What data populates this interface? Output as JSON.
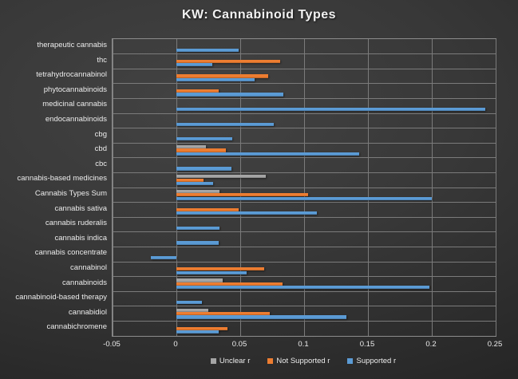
{
  "chart_data": {
    "type": "bar",
    "orientation": "horizontal",
    "title": "KW: Cannabinoid Types",
    "xlim": [
      -0.05,
      0.25
    ],
    "grid": true,
    "legend_position": "bottom",
    "x_ticks": [
      {
        "value": -0.05,
        "label": "-0.05"
      },
      {
        "value": 0,
        "label": "0"
      },
      {
        "value": 0.05,
        "label": "0.05"
      },
      {
        "value": 0.1,
        "label": "0.1"
      },
      {
        "value": 0.15,
        "label": "0.15"
      },
      {
        "value": 0.2,
        "label": "0.2"
      },
      {
        "value": 0.25,
        "label": "0.25"
      }
    ],
    "categories": [
      "therapeutic cannabis",
      "thc",
      "tetrahydrocannabinol",
      "phytocannabinoids",
      "medicinal cannabis",
      "endocannabinoids",
      "cbg",
      "cbd",
      "cbc",
      "cannabis-based medicines",
      "Cannabis Types Sum",
      "cannabis sativa",
      "cannabis ruderalis",
      "cannabis indica",
      "cannabis concentrate",
      "cannabinol",
      "cannabinoids",
      "cannabinoid-based therapy",
      "cannabidiol",
      "cannabichromene"
    ],
    "series": [
      {
        "name": "Unclear r",
        "key": "unclear",
        "color": "#A5A5A5",
        "values": [
          null,
          null,
          null,
          null,
          null,
          null,
          null,
          0.023,
          null,
          0.07,
          0.034,
          null,
          null,
          null,
          null,
          null,
          0.036,
          null,
          0.025,
          null
        ]
      },
      {
        "name": "Not Supported r",
        "key": "not-supported",
        "color": "#ED7D31",
        "values": [
          null,
          0.081,
          0.072,
          0.033,
          null,
          null,
          null,
          0.039,
          null,
          0.021,
          0.103,
          0.049,
          null,
          null,
          null,
          0.069,
          0.083,
          null,
          0.073,
          0.04
        ]
      },
      {
        "name": "Supported r",
        "key": "supported",
        "color": "#5B9BD5",
        "values": [
          0.049,
          0.028,
          0.061,
          0.084,
          0.242,
          0.076,
          0.044,
          0.143,
          0.043,
          0.029,
          0.2,
          0.11,
          0.034,
          0.033,
          -0.02,
          0.055,
          0.198,
          0.02,
          0.133,
          0.033
        ]
      }
    ]
  }
}
